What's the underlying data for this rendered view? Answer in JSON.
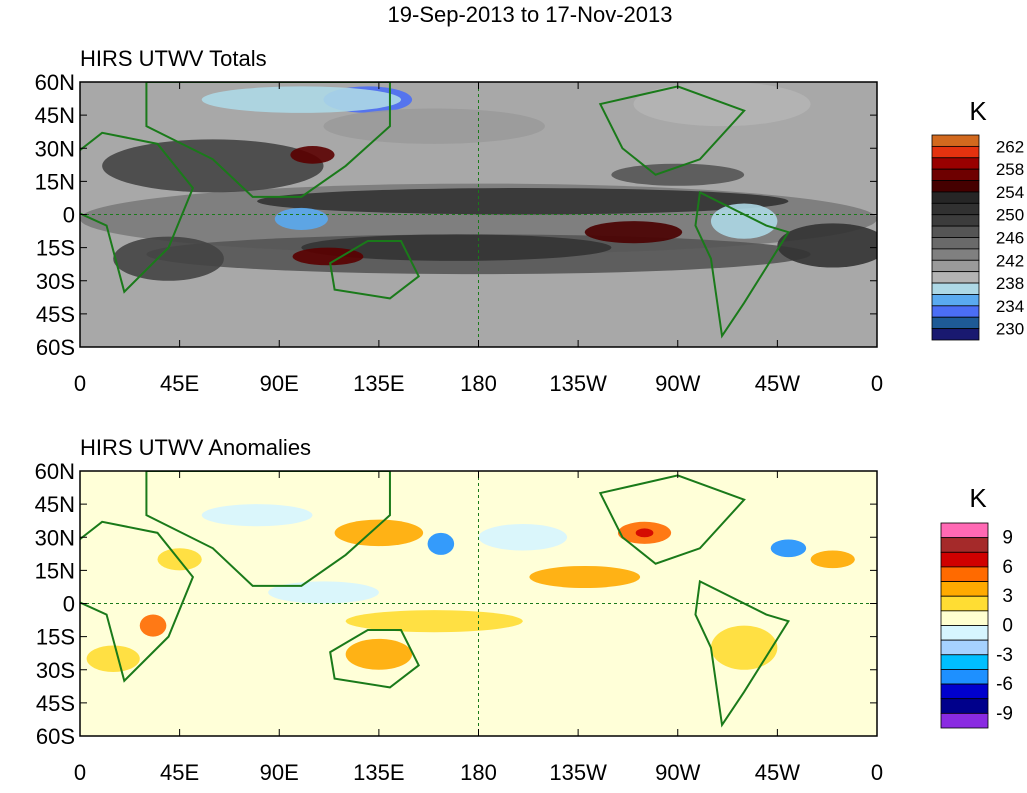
{
  "main_title": "19-Sep-2013 to 17-Nov-2013",
  "panels": [
    {
      "title": "HIRS UTWV Totals",
      "units": "K",
      "colorbar": {
        "colors": [
          "#d2691e",
          "#e4320f",
          "#990000",
          "#6e0000",
          "#450000",
          "#262626",
          "#313131",
          "#3c3c3c",
          "#555555",
          "#6a6a6a",
          "#808080",
          "#9a9a9a",
          "#b4b4b4",
          "#add8e6",
          "#5aaaf0",
          "#4b6ef5",
          "#1e5a96",
          "#191970"
        ],
        "labels": [
          "262",
          "258",
          "254",
          "250",
          "246",
          "242",
          "238",
          "234",
          "230"
        ]
      }
    },
    {
      "title": "HIRS UTWV Anomalies",
      "units": "K",
      "colorbar": {
        "colors": [
          "#ff69b4",
          "#a52a2a",
          "#d00000",
          "#ff6a00",
          "#ffaa00",
          "#ffdd33",
          "#ffffd0",
          "#d6f5ff",
          "#a6d2ff",
          "#00bfff",
          "#1e90ff",
          "#0000cd",
          "#00008b",
          "#8a2be2"
        ],
        "labels": [
          "9",
          "6",
          "3",
          "0",
          "-3",
          "-6",
          "-9"
        ]
      }
    }
  ],
  "lat_labels": [
    "60N",
    "45N",
    "30N",
    "15N",
    "0",
    "15S",
    "30S",
    "45S",
    "60S"
  ],
  "lon_labels": [
    "0",
    "45E",
    "90E",
    "135E",
    "180",
    "135W",
    "90W",
    "45W",
    "0"
  ]
}
